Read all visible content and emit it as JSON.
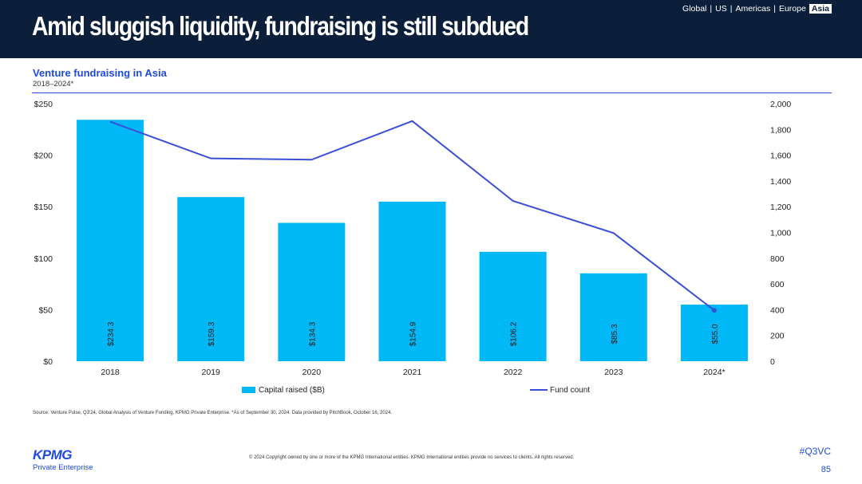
{
  "header": {
    "title": "Amid sluggish liquidity, fundraising is still subdued",
    "regions": [
      "Global",
      "US",
      "Americas",
      "Europe"
    ],
    "active_region": "Asia"
  },
  "chart_header": {
    "title": "Venture fundraising in Asia",
    "subtitle": "2018–2024*"
  },
  "chart_data": {
    "type": "bar",
    "categories": [
      "2018",
      "2019",
      "2020",
      "2021",
      "2022",
      "2023",
      "2024*"
    ],
    "series": [
      {
        "name": "Capital raised ($B)",
        "type": "bar",
        "axis": "left",
        "color": "#00b8f5",
        "values": [
          234.3,
          159.3,
          134.3,
          154.9,
          106.2,
          85.3,
          55.0
        ],
        "labels": [
          "$234.3",
          "$159.3",
          "$134.3",
          "$154.9",
          "$106.2",
          "$85.3",
          "$55.0"
        ]
      },
      {
        "name": "Fund count",
        "type": "line",
        "axis": "right",
        "color": "#3a4fd8",
        "values": [
          1860,
          1575,
          1565,
          1865,
          1245,
          995,
          395
        ]
      }
    ],
    "y_left": {
      "min": 0,
      "max": 250,
      "ticks": [
        0,
        50,
        100,
        150,
        200,
        250
      ],
      "tick_labels": [
        "$0",
        "$50",
        "$100",
        "$150",
        "$200",
        "$250"
      ]
    },
    "y_right": {
      "min": 0,
      "max": 2000,
      "ticks": [
        0,
        200,
        400,
        600,
        800,
        1000,
        1200,
        1400,
        1600,
        1800,
        2000
      ],
      "tick_labels": [
        "0",
        "200",
        "400",
        "600",
        "800",
        "1,000",
        "1,200",
        "1,400",
        "1,600",
        "1,800",
        "2,000"
      ]
    },
    "legend": {
      "position": "bottom",
      "items": [
        "Capital raised ($B)",
        "Fund count"
      ]
    }
  },
  "footer": {
    "source": "Source: Venture Pulse, Q3'24, Global Analysis of Venture Funding, KPMG Private Enterprise. *As of September 30, 2024. Data provided by PitchBook, October 16, 2024.",
    "copyright": "© 2024 Copyright owned by one or more of the KPMG International entities. KPMG International entities provide no services to clients. All rights reserved.",
    "hashtag": "#Q3VC",
    "page_number": "85",
    "logo_text": "KPMG",
    "logo_sub": "Private Enterprise"
  }
}
